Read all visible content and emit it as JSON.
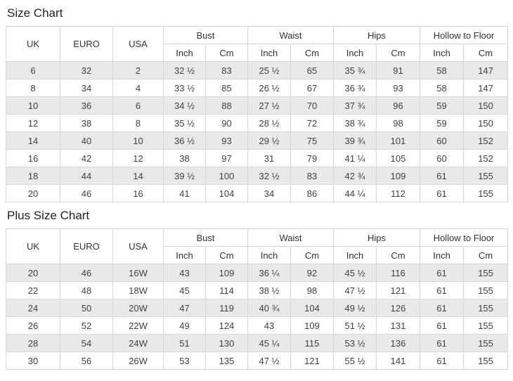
{
  "titles": {
    "size_chart": "Size Chart",
    "plus_size_chart": "Plus Size Chart"
  },
  "headers": {
    "uk": "UK",
    "euro": "EURO",
    "usa": "USA",
    "bust": "Bust",
    "waist": "Waist",
    "hips": "Hips",
    "hollow_to_floor": "Hollow to Floor",
    "inch": "Inch",
    "cm": "Cm"
  },
  "colors": {
    "background": "#ffffff",
    "border": "#d6d6d6",
    "row_stripe": "#e9e9e9",
    "header_text": "#333333",
    "cell_text": "#404040",
    "title_text": "#222222"
  },
  "chart_data": [
    {
      "type": "table",
      "title": "Size Chart",
      "column_groups": [
        "UK",
        "EURO",
        "USA",
        "Bust",
        "Waist",
        "Hips",
        "Hollow to Floor"
      ],
      "columns": [
        "UK",
        "EURO",
        "USA",
        "Bust Inch",
        "Bust Cm",
        "Waist Inch",
        "Waist Cm",
        "Hips Inch",
        "Hips Cm",
        "Hollow to Floor Inch",
        "Hollow to Floor Cm"
      ],
      "rows": [
        [
          "6",
          "32",
          "2",
          "32 ½",
          "83",
          "25 ½",
          "65",
          "35 ¾",
          "91",
          "58",
          "147"
        ],
        [
          "8",
          "34",
          "4",
          "33 ½",
          "85",
          "26 ½",
          "67",
          "36 ¾",
          "93",
          "58",
          "147"
        ],
        [
          "10",
          "36",
          "6",
          "34 ½",
          "88",
          "27 ½",
          "70",
          "37 ¾",
          "96",
          "59",
          "150"
        ],
        [
          "12",
          "38",
          "8",
          "35 ½",
          "90",
          "28 ½",
          "72",
          "38 ¾",
          "98",
          "59",
          "150"
        ],
        [
          "14",
          "40",
          "10",
          "36 ½",
          "93",
          "29 ½",
          "75",
          "39 ¾",
          "101",
          "60",
          "152"
        ],
        [
          "16",
          "42",
          "12",
          "38",
          "97",
          "31",
          "79",
          "41 ¼",
          "105",
          "60",
          "152"
        ],
        [
          "18",
          "44",
          "14",
          "39 ½",
          "100",
          "32 ½",
          "83",
          "42 ¾",
          "109",
          "61",
          "155"
        ],
        [
          "20",
          "46",
          "16",
          "41",
          "104",
          "34",
          "86",
          "44 ¼",
          "112",
          "61",
          "155"
        ]
      ]
    },
    {
      "type": "table",
      "title": "Plus Size Chart",
      "column_groups": [
        "UK",
        "EURO",
        "USA",
        "Bust",
        "Waist",
        "Hips",
        "Hollow to Floor"
      ],
      "columns": [
        "UK",
        "EURO",
        "USA",
        "Bust Inch",
        "Bust Cm",
        "Waist Inch",
        "Waist Cm",
        "Hips Inch",
        "Hips Cm",
        "Hollow to Floor Inch",
        "Hollow to Floor Cm"
      ],
      "rows": [
        [
          "20",
          "46",
          "16W",
          "43",
          "109",
          "36 ¼",
          "92",
          "45 ½",
          "116",
          "61",
          "155"
        ],
        [
          "22",
          "48",
          "18W",
          "45",
          "114",
          "38 ½",
          "98",
          "47 ½",
          "121",
          "61",
          "155"
        ],
        [
          "24",
          "50",
          "20W",
          "47",
          "119",
          "40 ¾",
          "104",
          "49 ½",
          "126",
          "61",
          "155"
        ],
        [
          "26",
          "52",
          "22W",
          "49",
          "124",
          "43",
          "109",
          "51 ½",
          "131",
          "61",
          "155"
        ],
        [
          "28",
          "54",
          "24W",
          "51",
          "130",
          "45 ¼",
          "115",
          "53 ½",
          "136",
          "61",
          "155"
        ],
        [
          "30",
          "56",
          "26W",
          "53",
          "135",
          "47 ½",
          "121",
          "55 ½",
          "141",
          "61",
          "155"
        ]
      ]
    }
  ]
}
